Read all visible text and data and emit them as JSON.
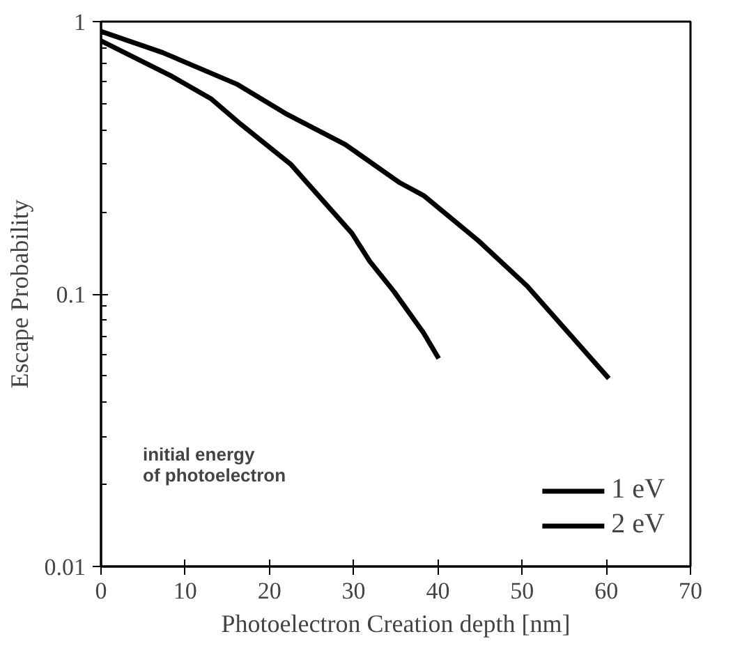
{
  "chart_data": {
    "type": "line",
    "xlabel": "Photoelectron Creation depth [nm]",
    "ylabel": "Escape Probability",
    "legend_title": "initial energy\nof photoelectron",
    "xlim": [
      0,
      70
    ],
    "xticks": [
      0,
      10,
      20,
      30,
      40,
      50,
      60,
      70
    ],
    "ylim": [
      0.01,
      1
    ],
    "yticks": [
      0.01,
      0.1,
      1
    ],
    "log": true,
    "grid": false,
    "legend": "bottom right",
    "marker": "none",
    "line_style": "solid",
    "series": [
      {
        "name": "1 eV",
        "color": "#000000",
        "x": [
          0,
          8.4,
          13.1,
          16.6,
          22.5,
          29.8,
          31.9,
          34.8,
          38.3,
          40.1
        ],
        "values": [
          0.85,
          0.63,
          0.52,
          0.42,
          0.3,
          0.167,
          0.132,
          0.102,
          0.072,
          0.058
        ]
      },
      {
        "name": "2 eV",
        "color": "#000000",
        "x": [
          0,
          7.3,
          16.1,
          21.9,
          29.0,
          35.4,
          38.3,
          44.8,
          50.6,
          60.3
        ],
        "values": [
          0.92,
          0.77,
          0.59,
          0.46,
          0.354,
          0.257,
          0.23,
          0.157,
          0.107,
          0.049
        ]
      }
    ]
  }
}
